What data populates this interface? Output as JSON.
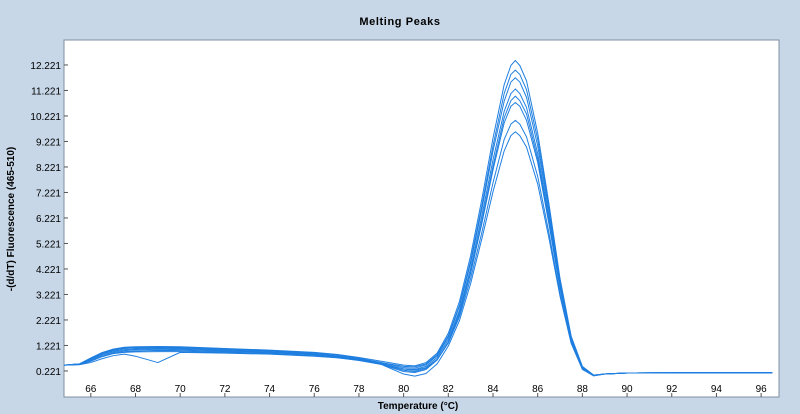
{
  "chart_data": {
    "type": "line",
    "title": "Melting Peaks",
    "xlabel": "Temperature (°C)",
    "ylabel": "-(d/dT) Fluorescence (465-510)",
    "xlim": [
      64.8,
      96.8
    ],
    "ylim": [
      -0.8,
      13.2
    ],
    "xticks": [
      66,
      68,
      70,
      72,
      74,
      76,
      78,
      80,
      82,
      84,
      86,
      88,
      90,
      92,
      94,
      96
    ],
    "yticks": [
      0.221,
      1.221,
      2.221,
      3.221,
      4.221,
      5.221,
      6.221,
      7.221,
      8.221,
      9.221,
      10.221,
      11.221,
      12.221
    ],
    "ytick_labels": [
      "0.221",
      "1.221",
      "2.221",
      "3.221",
      "4.221",
      "5.221",
      "6.221",
      "7.221",
      "8.221",
      "9.221",
      "10.221",
      "11.221",
      "12.221"
    ],
    "grid": false,
    "line_color": "#1f7fe0",
    "x": [
      64.8,
      65.5,
      66,
      66.5,
      67,
      67.5,
      68,
      69,
      70,
      72,
      74,
      76,
      77,
      78,
      79,
      80,
      80.5,
      81,
      81.5,
      82,
      82.5,
      83,
      83.5,
      84,
      84.5,
      84.8,
      85,
      85.2,
      85.5,
      86,
      86.5,
      87,
      87.5,
      88,
      88.5,
      89,
      90,
      92,
      94,
      96.5
    ],
    "series": [
      {
        "values": [
          0.45,
          0.5,
          0.72,
          0.92,
          1.06,
          1.12,
          1.15,
          1.16,
          1.14,
          1.08,
          1.02,
          0.93,
          0.85,
          0.72,
          0.55,
          0.35,
          0.33,
          0.46,
          0.82,
          1.55,
          2.75,
          4.45,
          6.55,
          8.85,
          10.8,
          11.55,
          11.72,
          11.55,
          10.95,
          9.05,
          6.45,
          3.65,
          1.5,
          0.35,
          0.05,
          0.1,
          0.14,
          0.15,
          0.15,
          0.15
        ]
      },
      {
        "values": [
          0.45,
          0.5,
          0.7,
          0.9,
          1.03,
          1.1,
          1.12,
          1.13,
          1.12,
          1.06,
          1.0,
          0.9,
          0.82,
          0.7,
          0.55,
          0.4,
          0.38,
          0.5,
          0.86,
          1.6,
          2.8,
          4.55,
          6.7,
          9.05,
          11.1,
          11.85,
          12.02,
          11.85,
          11.25,
          9.3,
          6.65,
          3.75,
          1.55,
          0.38,
          0.06,
          0.1,
          0.14,
          0.15,
          0.15,
          0.15
        ]
      },
      {
        "values": [
          0.45,
          0.49,
          0.68,
          0.88,
          1.0,
          1.06,
          1.08,
          1.1,
          1.09,
          1.03,
          0.97,
          0.88,
          0.8,
          0.68,
          0.52,
          0.3,
          0.28,
          0.4,
          0.75,
          1.45,
          2.6,
          4.25,
          6.3,
          8.5,
          10.4,
          11.1,
          11.28,
          11.1,
          10.55,
          8.75,
          6.25,
          3.55,
          1.45,
          0.33,
          0.05,
          0.1,
          0.14,
          0.15,
          0.15,
          0.15
        ]
      },
      {
        "values": [
          0.45,
          0.48,
          0.65,
          0.84,
          0.96,
          1.02,
          1.05,
          1.07,
          1.06,
          1.0,
          0.95,
          0.86,
          0.78,
          0.65,
          0.48,
          0.2,
          0.16,
          0.28,
          0.65,
          1.35,
          2.45,
          4.05,
          6.0,
          8.1,
          9.95,
          10.6,
          10.75,
          10.6,
          10.05,
          8.4,
          6.0,
          3.45,
          1.4,
          0.3,
          0.04,
          0.1,
          0.14,
          0.15,
          0.15,
          0.15
        ]
      },
      {
        "values": [
          0.45,
          0.48,
          0.62,
          0.8,
          0.92,
          0.98,
          1.0,
          1.03,
          1.02,
          0.97,
          0.93,
          0.85,
          0.77,
          0.65,
          0.5,
          0.25,
          0.2,
          0.32,
          0.66,
          1.32,
          2.35,
          3.85,
          5.65,
          7.6,
          9.3,
          9.9,
          10.05,
          9.9,
          9.4,
          7.85,
          5.65,
          3.25,
          1.35,
          0.3,
          0.04,
          0.1,
          0.14,
          0.15,
          0.15,
          0.15
        ]
      },
      {
        "values": [
          0.45,
          0.47,
          0.6,
          0.78,
          0.9,
          0.95,
          0.97,
          0.98,
          0.98,
          0.94,
          0.9,
          0.82,
          0.75,
          0.63,
          0.48,
          0.1,
          0.02,
          0.12,
          0.5,
          1.2,
          2.2,
          3.65,
          5.4,
          7.25,
          8.85,
          9.45,
          9.6,
          9.45,
          9.0,
          7.55,
          5.45,
          3.15,
          1.3,
          0.28,
          0.03,
          0.1,
          0.14,
          0.15,
          0.15,
          0.15
        ]
      },
      {
        "values": [
          0.45,
          0.47,
          0.55,
          0.7,
          0.82,
          0.88,
          0.8,
          0.55,
          0.95,
          0.92,
          0.88,
          0.8,
          0.74,
          0.64,
          0.5,
          0.3,
          0.25,
          0.35,
          0.68,
          1.35,
          2.5,
          4.1,
          6.1,
          8.25,
          10.15,
          10.82,
          11.0,
          10.82,
          10.3,
          8.55,
          6.1,
          3.48,
          1.42,
          0.32,
          0.05,
          0.1,
          0.14,
          0.15,
          0.15,
          0.15
        ]
      },
      {
        "values": [
          0.45,
          0.5,
          0.73,
          0.94,
          1.08,
          1.15,
          1.17,
          1.18,
          1.17,
          1.1,
          1.04,
          0.95,
          0.87,
          0.75,
          0.6,
          0.45,
          0.42,
          0.55,
          0.92,
          1.7,
          2.95,
          4.75,
          6.95,
          9.35,
          11.45,
          12.2,
          12.4,
          12.2,
          11.6,
          9.55,
          6.8,
          3.85,
          1.58,
          0.4,
          0.06,
          0.1,
          0.14,
          0.15,
          0.15,
          0.15
        ]
      }
    ]
  }
}
